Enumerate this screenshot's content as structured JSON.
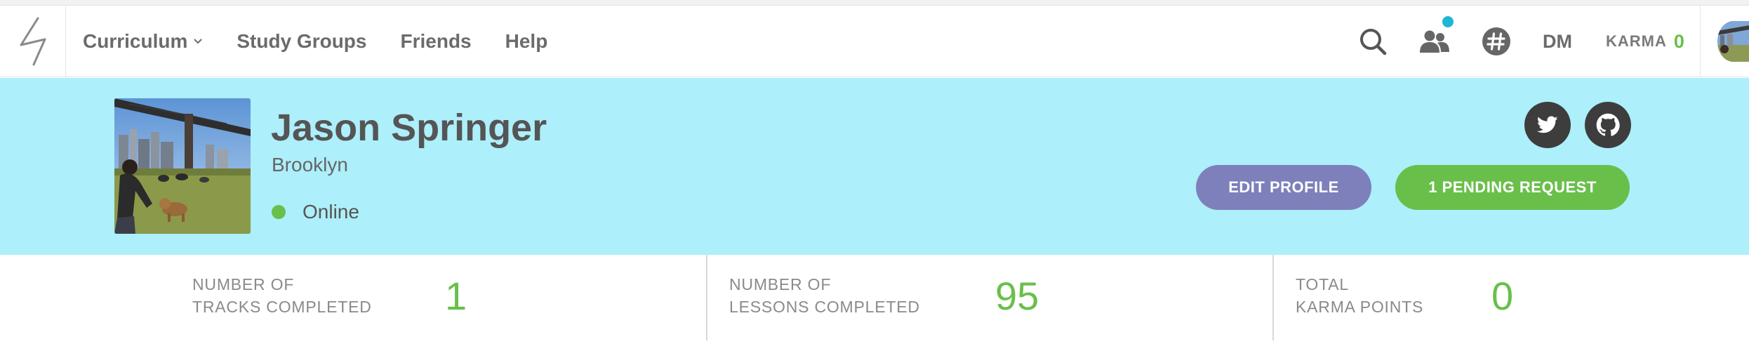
{
  "nav": {
    "links": [
      {
        "label": "Curriculum"
      },
      {
        "label": "Study Groups"
      },
      {
        "label": "Friends"
      },
      {
        "label": "Help"
      }
    ],
    "dm_label": "DM",
    "karma_label": "KARMA",
    "karma_value": "0",
    "notification_color": "#1fb5d6",
    "icons": [
      "logo-icon",
      "search-icon",
      "people-icon",
      "hashtag-icon",
      "chevron-down-icon"
    ]
  },
  "profile": {
    "name": "Jason Springer",
    "location": "Brooklyn",
    "status": "Online",
    "status_color": "#6abf4b",
    "banner_color": "#adeffa",
    "social_icons": [
      "twitter-icon",
      "github-icon"
    ],
    "edit_button": "EDIT PROFILE",
    "pending_button": "1 PENDING REQUEST",
    "edit_color": "#7e80bb",
    "pending_color": "#6abf4b"
  },
  "stats": [
    {
      "label_line1": "NUMBER OF",
      "label_line2": "TRACKS COMPLETED",
      "value": "1"
    },
    {
      "label_line1": "NUMBER OF",
      "label_line2": "LESSONS COMPLETED",
      "value": "95"
    },
    {
      "label_line1": "TOTAL",
      "label_line2": "KARMA POINTS",
      "value": "0"
    }
  ]
}
